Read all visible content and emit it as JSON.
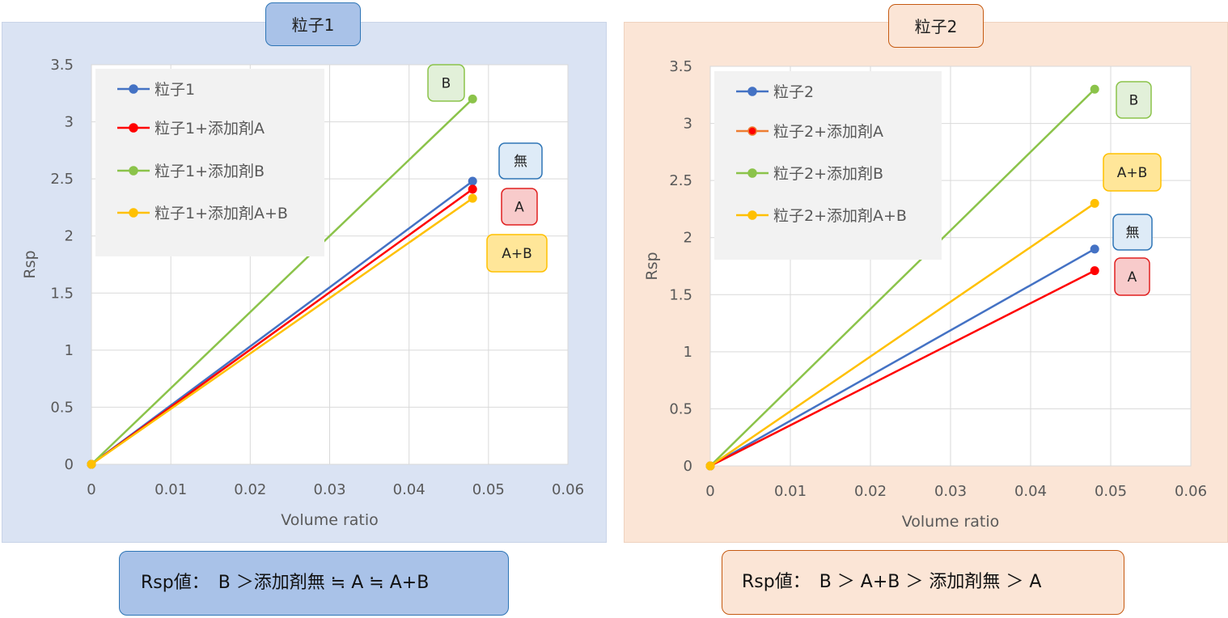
{
  "chart_data": [
    {
      "type": "line",
      "title": "粒子1",
      "xlabel": "Volume ratio",
      "ylabel": "Rsp",
      "xlim": [
        0,
        0.06
      ],
      "ylim": [
        0,
        3.5
      ],
      "xticks": [
        "0",
        "0.01",
        "0.02",
        "0.03",
        "0.04",
        "0.05",
        "0.06"
      ],
      "yticks": [
        "0",
        "0.5",
        "1",
        "1.5",
        "2",
        "2.5",
        "3",
        "3.5"
      ],
      "grid": true,
      "legend_position": "top-left",
      "series": [
        {
          "name": "粒子1",
          "color": "#4472C4",
          "x": [
            0,
            0.048
          ],
          "y": [
            0,
            2.48
          ]
        },
        {
          "name": "粒子1+添加剤A",
          "color": "#FF0000",
          "x": [
            0,
            0.048
          ],
          "y": [
            0,
            2.41
          ]
        },
        {
          "name": "粒子1+添加剤B",
          "color": "#8BC34A",
          "x": [
            0,
            0.048
          ],
          "y": [
            0,
            3.2
          ]
        },
        {
          "name": "粒子1+添加剤A+B",
          "color": "#FFC000",
          "x": [
            0,
            0.048
          ],
          "y": [
            0,
            2.33
          ]
        }
      ],
      "callouts": [
        {
          "text": "B",
          "fill": "#E2F0D9",
          "border": "#8BC34A"
        },
        {
          "text": "無",
          "fill": "#DEEBF7",
          "border": "#2E75B6"
        },
        {
          "text": "A",
          "fill": "#F8CBCB",
          "border": "#E02020"
        },
        {
          "text": "A+B",
          "fill": "#FFE699",
          "border": "#FFC000"
        }
      ],
      "summary": "Rsp値：　B ＞添加剤無 ≒ A ≒ A+B"
    },
    {
      "type": "line",
      "title": "粒子2",
      "xlabel": "Volume ratio",
      "ylabel": "Rsp",
      "xlim": [
        0,
        0.06
      ],
      "ylim": [
        0,
        3.5
      ],
      "xticks": [
        "0",
        "0.01",
        "0.02",
        "0.03",
        "0.04",
        "0.05",
        "0.06"
      ],
      "yticks": [
        "0",
        "0.5",
        "1",
        "1.5",
        "2",
        "2.5",
        "3",
        "3.5"
      ],
      "grid": true,
      "legend_position": "top-left",
      "series": [
        {
          "name": "粒子2",
          "color": "#4472C4",
          "x": [
            0,
            0.048
          ],
          "y": [
            0,
            1.9
          ]
        },
        {
          "name": "粒子2+添加剤A",
          "color": "#ED7D31",
          "marker_color": "#FF0000",
          "line_color": "#FF0000",
          "x": [
            0,
            0.048
          ],
          "y": [
            0,
            1.71
          ]
        },
        {
          "name": "粒子2+添加剤B",
          "color": "#8BC34A",
          "x": [
            0,
            0.048
          ],
          "y": [
            0,
            3.3
          ]
        },
        {
          "name": "粒子2+添加剤A+B",
          "color": "#FFC000",
          "x": [
            0,
            0.048
          ],
          "y": [
            0,
            2.3
          ]
        }
      ],
      "callouts": [
        {
          "text": "B",
          "fill": "#E2F0D9",
          "border": "#8BC34A"
        },
        {
          "text": "A+B",
          "fill": "#FFE699",
          "border": "#FFC000"
        },
        {
          "text": "無",
          "fill": "#DEEBF7",
          "border": "#2E75B6"
        },
        {
          "text": "A",
          "fill": "#F8CBCB",
          "border": "#E02020"
        }
      ],
      "summary": "Rsp値：　B ＞ A+B ＞ 添加剤無 ＞ A"
    }
  ],
  "colors": {
    "panel1_bg": "#DAE3F3",
    "panel2_bg": "#FBE5D6",
    "panel1_accent": "#2E75B6",
    "panel2_accent": "#C55A11"
  }
}
